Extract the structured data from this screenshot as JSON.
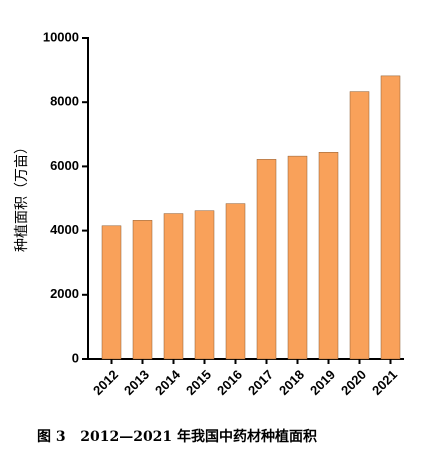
{
  "chart_data": {
    "type": "bar",
    "y_label": "种植面积（万亩）",
    "caption": "图 3   2012—2021 年我国中药材种植面积",
    "categories": [
      "2012",
      "2013",
      "2014",
      "2015",
      "2016",
      "2017",
      "2018",
      "2019",
      "2020",
      "2021"
    ],
    "values": [
      4150,
      4320,
      4530,
      4620,
      4840,
      6220,
      6320,
      6440,
      8330,
      8820
    ],
    "color": "#f9a15a",
    "ylim": [
      0,
      10000
    ],
    "yticks": [
      0,
      2000,
      4000,
      6000,
      8000,
      10000
    ],
    "grid": false
  }
}
